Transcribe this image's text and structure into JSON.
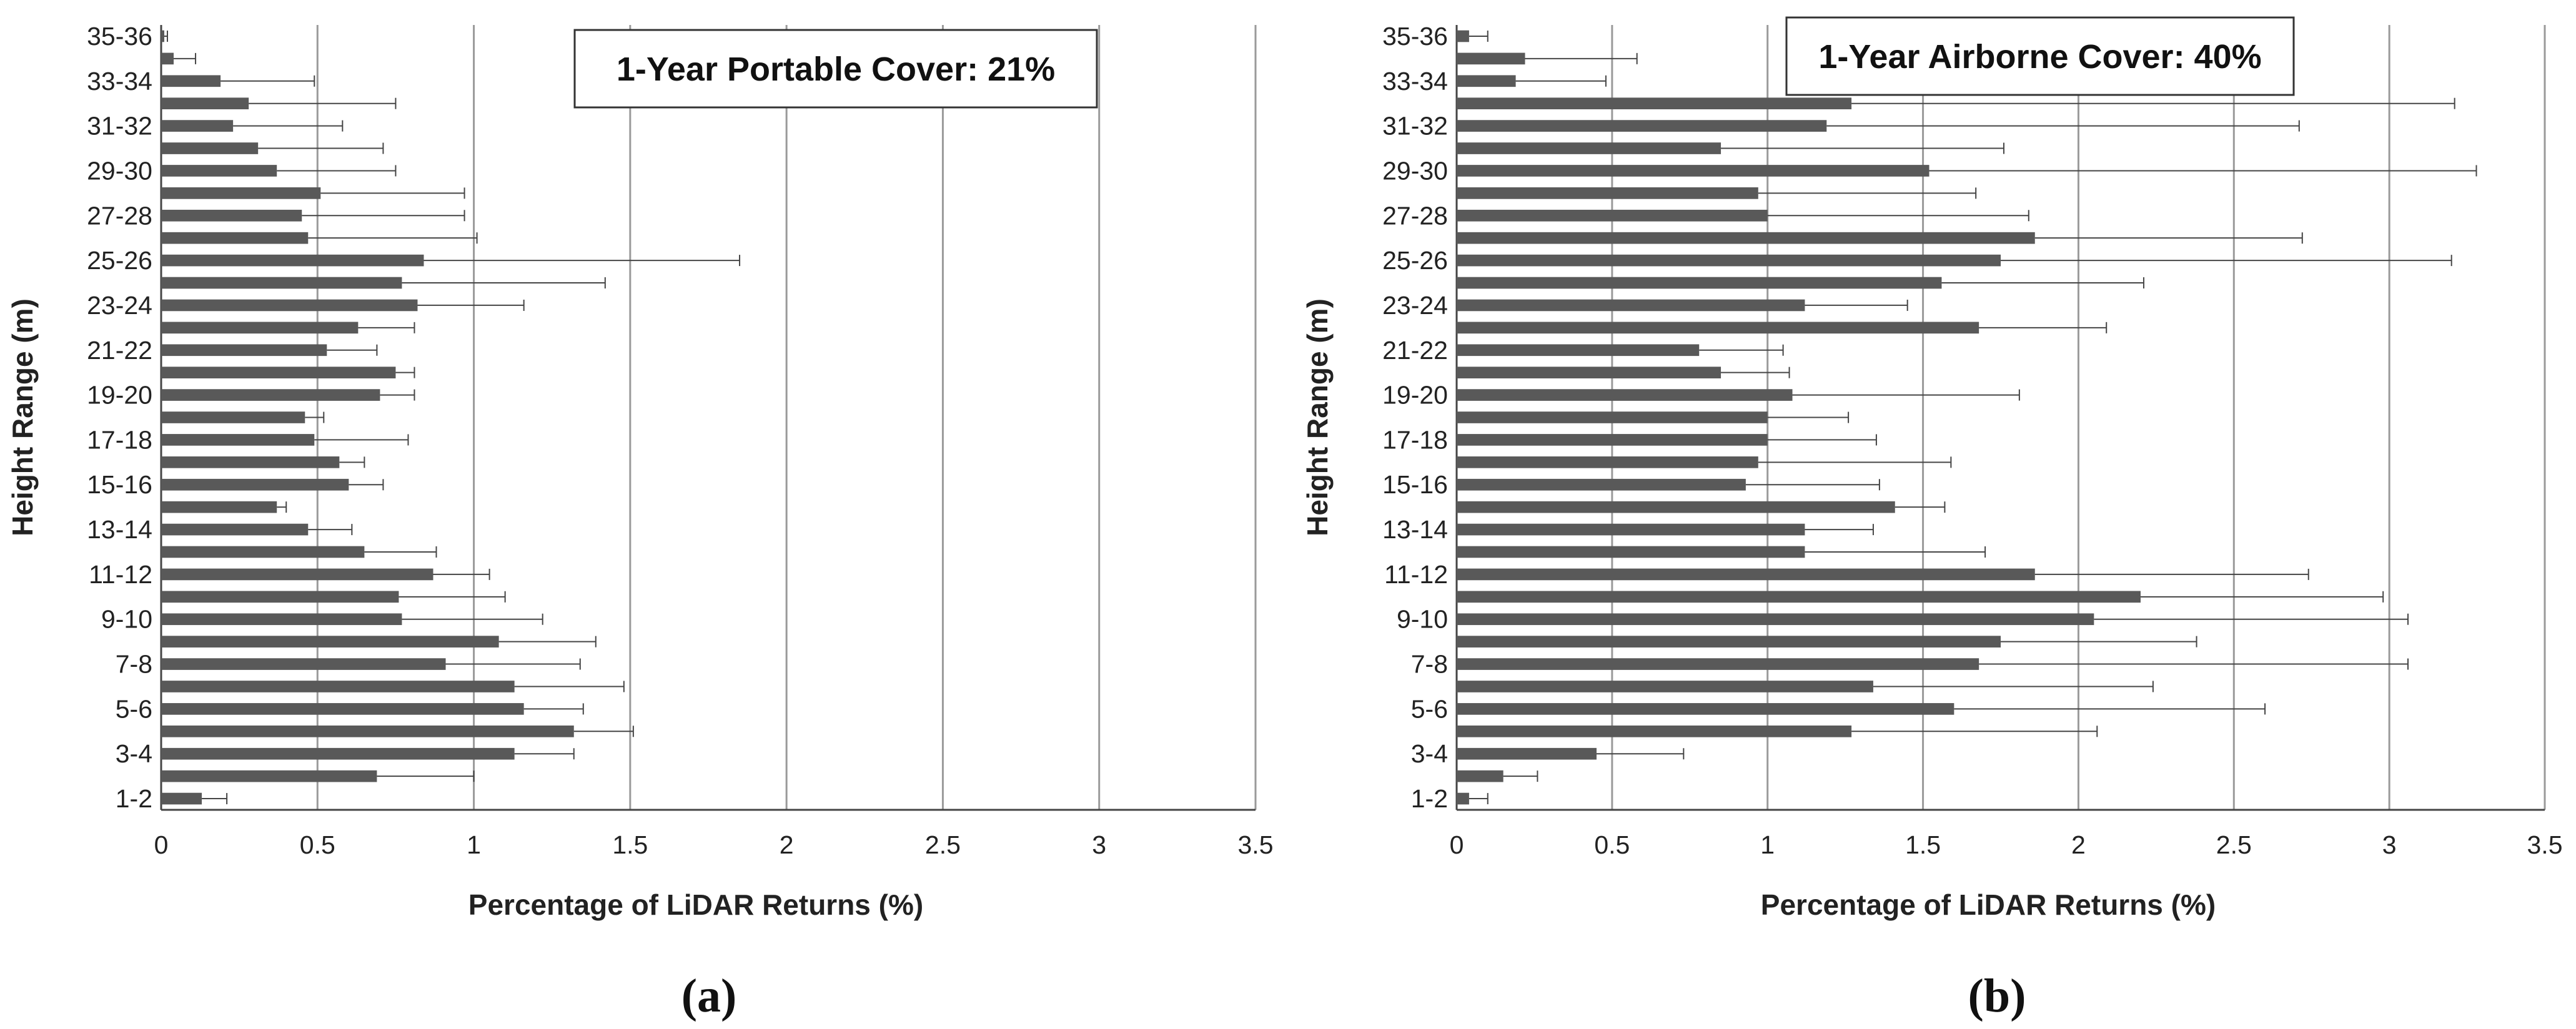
{
  "chart_data": [
    {
      "type": "bar",
      "orientation": "horizontal",
      "panel_label": "(a)",
      "annotation": "1-Year Portable Cover: 21%",
      "xlabel": "Percentage of LiDAR Returns (%)",
      "ylabel": "Height Range (m)",
      "xlim": [
        0,
        3.5
      ],
      "xticks": [
        "0",
        "0.5",
        "1",
        "1.5",
        "2",
        "2.5",
        "3",
        "3.5"
      ],
      "grid": "vertical",
      "bar_color": "#595959",
      "categories": [
        "1-2",
        "2-3",
        "3-4",
        "4-5",
        "5-6",
        "6-7",
        "7-8",
        "8-9",
        "9-10",
        "10-11",
        "11-12",
        "12-13",
        "13-14",
        "14-15",
        "15-16",
        "16-17",
        "17-18",
        "18-19",
        "19-20",
        "20-21",
        "21-22",
        "22-23",
        "23-24",
        "24-25",
        "25-26",
        "26-27",
        "27-28",
        "28-29",
        "29-30",
        "30-31",
        "31-32",
        "32-33",
        "33-34",
        "34-35",
        "35-36"
      ],
      "category_labels": [
        "1-2",
        "",
        "3-4",
        "",
        "5-6",
        "",
        "7-8",
        "",
        "9-10",
        "",
        "11-12",
        "",
        "13-14",
        "",
        "15-16",
        "",
        "17-18",
        "",
        "19-20",
        "",
        "21-22",
        "",
        "23-24",
        "",
        "25-26",
        "",
        "27-28",
        "",
        "29-30",
        "",
        "31-32",
        "",
        "33-34",
        "",
        "35-36"
      ],
      "values": [
        0.13,
        0.69,
        1.13,
        1.32,
        1.16,
        1.13,
        0.91,
        1.08,
        0.77,
        0.76,
        0.87,
        0.65,
        0.47,
        0.37,
        0.6,
        0.57,
        0.49,
        0.46,
        0.7,
        0.75,
        0.53,
        0.63,
        0.82,
        0.77,
        0.84,
        0.47,
        0.45,
        0.51,
        0.37,
        0.31,
        0.23,
        0.28,
        0.19,
        0.04,
        0.01
      ],
      "errors": [
        0.08,
        0.31,
        0.19,
        0.19,
        0.19,
        0.35,
        0.43,
        0.31,
        0.45,
        0.34,
        0.18,
        0.23,
        0.14,
        0.03,
        0.11,
        0.08,
        0.3,
        0.06,
        0.11,
        0.06,
        0.16,
        0.18,
        0.34,
        0.65,
        1.01,
        0.54,
        0.52,
        0.46,
        0.38,
        0.4,
        0.35,
        0.47,
        0.3,
        0.07,
        0.01
      ]
    },
    {
      "type": "bar",
      "orientation": "horizontal",
      "panel_label": "(b)",
      "annotation": "1-Year Airborne Cover: 40%",
      "xlabel": "Percentage of LiDAR Returns (%)",
      "ylabel": "Height Range (m)",
      "xlim": [
        0,
        3.5
      ],
      "xticks": [
        "0",
        "0.5",
        "1",
        "1.5",
        "2",
        "2.5",
        "3",
        "3.5"
      ],
      "grid": "vertical",
      "bar_color": "#595959",
      "categories": [
        "1-2",
        "2-3",
        "3-4",
        "4-5",
        "5-6",
        "6-7",
        "7-8",
        "8-9",
        "9-10",
        "10-11",
        "11-12",
        "12-13",
        "13-14",
        "14-15",
        "15-16",
        "16-17",
        "17-18",
        "18-19",
        "19-20",
        "20-21",
        "21-22",
        "22-23",
        "23-24",
        "24-25",
        "25-26",
        "26-27",
        "27-28",
        "28-29",
        "29-30",
        "30-31",
        "31-32",
        "32-33",
        "33-34",
        "34-35",
        "35-36"
      ],
      "category_labels": [
        "1-2",
        "",
        "3-4",
        "",
        "5-6",
        "",
        "7-8",
        "",
        "9-10",
        "",
        "11-12",
        "",
        "13-14",
        "",
        "15-16",
        "",
        "17-18",
        "",
        "19-20",
        "",
        "21-22",
        "",
        "23-24",
        "",
        "25-26",
        "",
        "27-28",
        "",
        "29-30",
        "",
        "31-32",
        "",
        "33-34",
        "",
        "35-36"
      ],
      "values": [
        0.04,
        0.15,
        0.45,
        1.27,
        1.6,
        1.34,
        1.68,
        1.75,
        2.05,
        2.2,
        1.86,
        1.12,
        1.12,
        1.41,
        0.93,
        0.97,
        1.0,
        1.0,
        1.08,
        0.85,
        0.78,
        1.68,
        1.12,
        1.56,
        1.75,
        1.86,
        1.0,
        0.97,
        1.52,
        0.85,
        1.19,
        1.27,
        0.19,
        0.22,
        0.04
      ],
      "errors": [
        0.06,
        0.11,
        0.28,
        0.79,
        1.0,
        0.9,
        1.38,
        0.63,
        1.01,
        0.78,
        0.88,
        0.58,
        0.22,
        0.16,
        0.43,
        0.62,
        0.35,
        0.26,
        0.73,
        0.22,
        0.27,
        0.41,
        0.33,
        0.65,
        1.45,
        0.86,
        0.84,
        0.7,
        1.76,
        0.91,
        1.52,
        1.94,
        0.29,
        0.36,
        0.06
      ]
    }
  ]
}
